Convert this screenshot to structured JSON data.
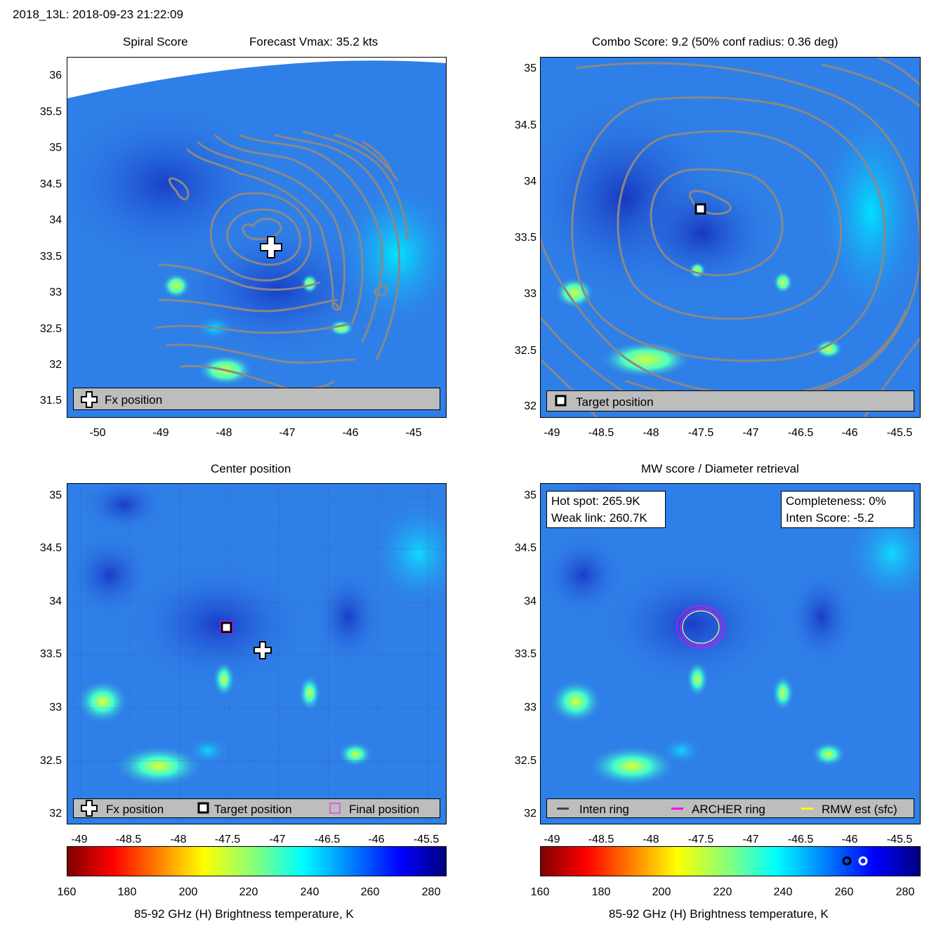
{
  "header": {
    "title": "2018_13L: 2018-09-23 21:22:09"
  },
  "panels": {
    "spiral": {
      "title_left": "Spiral Score",
      "title_right": "Forecast Vmax: 35.2 kts",
      "x_ticks": [
        "-50",
        "-49",
        "-48",
        "-47",
        "-46",
        "-45"
      ],
      "y_ticks": [
        "36",
        "35.5",
        "35",
        "34.5",
        "34",
        "33.5",
        "33",
        "32.5",
        "32",
        "31.5"
      ],
      "legend": {
        "fx_label": "Fx position"
      },
      "chart_data": {
        "type": "heatmap",
        "xlim": [
          -50.45,
          -44.5
        ],
        "ylim": [
          31.3,
          36.3
        ],
        "fx_position": [
          -47.2,
          33.5
        ]
      }
    },
    "combo": {
      "title": "Combo Score: 9.2  (50% conf radius: 0.36 deg)",
      "x_ticks": [
        "-49",
        "-48.5",
        "-48",
        "-47.5",
        "-47",
        "-46.5",
        "-46",
        "-45.5"
      ],
      "y_ticks": [
        "35",
        "34.5",
        "34",
        "33.5",
        "33",
        "32.5",
        "32"
      ],
      "legend": {
        "target_label": "Target position"
      },
      "chart_data": {
        "type": "heatmap",
        "xlim": [
          -49.1,
          -45.3
        ],
        "ylim": [
          31.9,
          35.1
        ],
        "target_position": [
          -47.38,
          33.77
        ]
      }
    },
    "center": {
      "title": "Center position",
      "x_ticks": [
        "-49",
        "-48.5",
        "-48",
        "-47.5",
        "-47",
        "-46.5",
        "-46",
        "-45.5"
      ],
      "y_ticks": [
        "35",
        "34.5",
        "34",
        "33.5",
        "33",
        "32.5",
        "32"
      ],
      "legend": {
        "fx_label": "Fx position",
        "target_label": "Target position",
        "final_label": "Final position"
      },
      "chart_data": {
        "type": "heatmap",
        "xlim": [
          -49.1,
          -45.3
        ],
        "ylim": [
          31.9,
          35.1
        ],
        "fx_position": [
          -47.3,
          33.5
        ],
        "target_position": [
          -47.5,
          33.75
        ]
      }
    },
    "mw": {
      "title": "MW score / Diameter retrieval",
      "hot_spot": "Hot spot: 265.9K",
      "weak_link": "Weak link: 260.7K",
      "completeness": "Completeness: 0%",
      "inten_score": "Inten Score: -5.2",
      "x_ticks": [
        "-49",
        "-48.5",
        "-48",
        "-47.5",
        "-47",
        "-46.5",
        "-46",
        "-45.5"
      ],
      "y_ticks": [
        "35",
        "34.5",
        "34",
        "33.5",
        "33",
        "32.5",
        "32"
      ],
      "legend": {
        "inten_label": "Inten ring",
        "archer_label": "ARCHER ring",
        "rmw_label": "RMW est (sfc)"
      },
      "chart_data": {
        "type": "heatmap",
        "xlim": [
          -49.1,
          -45.3
        ],
        "ylim": [
          31.9,
          35.1
        ],
        "ring_center": [
          -47.5,
          33.75
        ],
        "hot_spot_k": 265.9,
        "weak_link_k": 260.7
      }
    }
  },
  "colorbar": {
    "ticks": [
      "160",
      "180",
      "200",
      "220",
      "240",
      "260",
      "280"
    ],
    "label": "85-92 GHz (H) Brightness temperature, K",
    "range": [
      160,
      285
    ]
  },
  "colors": {
    "background": "#2f7fe8",
    "contour": "#888888",
    "magenta": "#ff00ff",
    "yellow": "#ffff00"
  }
}
